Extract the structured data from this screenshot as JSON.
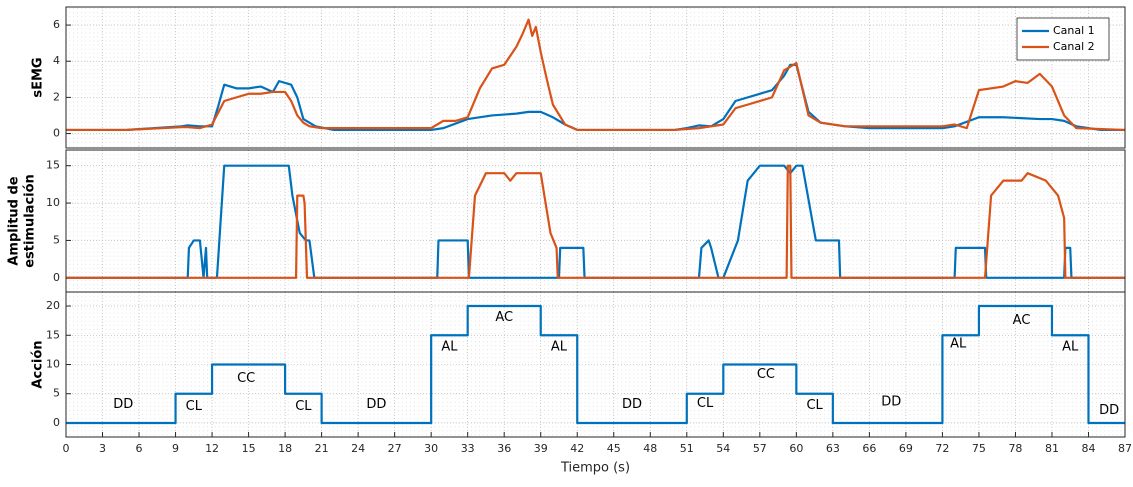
{
  "chart_data": [
    {
      "type": "line",
      "ylabel": "sEMG",
      "xlim": [
        0,
        87
      ],
      "ylim": [
        -0.8,
        7
      ],
      "yticks": [
        0,
        2,
        4,
        6
      ],
      "grid": true,
      "legend": "upper right",
      "series": [
        {
          "name": "Canal 1",
          "color": "#0072BD",
          "x": [
            0,
            5,
            9.5,
            10,
            11,
            12,
            12.5,
            13,
            14,
            15,
            16,
            17,
            17.5,
            18.5,
            19,
            19.5,
            20.5,
            22,
            30,
            31,
            33,
            35,
            37,
            38,
            39,
            40,
            41,
            42,
            50,
            51,
            52,
            53,
            54,
            55,
            57,
            58,
            59,
            59.5,
            60,
            60.5,
            61,
            62,
            64,
            66,
            72,
            73,
            75,
            77,
            80,
            81,
            82,
            83,
            85,
            87
          ],
          "values": [
            0.2,
            0.2,
            0.4,
            0.45,
            0.4,
            0.4,
            1.5,
            2.7,
            2.5,
            2.5,
            2.6,
            2.3,
            2.9,
            2.7,
            2.0,
            0.8,
            0.4,
            0.2,
            0.2,
            0.3,
            0.8,
            1.0,
            1.1,
            1.2,
            1.2,
            0.9,
            0.5,
            0.2,
            0.2,
            0.3,
            0.45,
            0.4,
            0.8,
            1.8,
            2.2,
            2.4,
            3.2,
            3.8,
            3.8,
            2.5,
            1.2,
            0.6,
            0.4,
            0.3,
            0.3,
            0.4,
            0.9,
            0.9,
            0.8,
            0.8,
            0.7,
            0.4,
            0.2,
            0.2
          ]
        },
        {
          "name": "Canal 2",
          "color": "#D95319",
          "x": [
            0,
            5,
            9.5,
            10,
            11,
            12,
            13,
            14,
            15,
            16,
            17,
            18,
            18.5,
            19,
            19.5,
            20,
            21,
            30,
            31,
            32,
            33,
            34,
            35,
            36,
            37,
            37.5,
            38,
            38.3,
            38.6,
            39,
            39.5,
            40,
            41,
            42,
            50,
            52,
            54,
            55,
            56,
            58,
            59,
            60,
            61,
            62,
            64,
            72,
            73,
            74,
            75,
            77,
            78,
            79,
            80,
            81,
            82,
            83,
            87
          ],
          "values": [
            0.2,
            0.2,
            0.35,
            0.35,
            0.3,
            0.5,
            1.8,
            2.0,
            2.2,
            2.2,
            2.3,
            2.3,
            1.8,
            1.0,
            0.6,
            0.4,
            0.3,
            0.3,
            0.7,
            0.7,
            0.9,
            2.5,
            3.6,
            3.8,
            4.8,
            5.5,
            6.3,
            5.4,
            5.9,
            4.5,
            3.0,
            1.6,
            0.5,
            0.2,
            0.2,
            0.3,
            0.5,
            1.4,
            1.6,
            2.0,
            3.5,
            3.9,
            1.0,
            0.6,
            0.4,
            0.4,
            0.5,
            0.3,
            2.4,
            2.6,
            2.9,
            2.8,
            3.3,
            2.6,
            1.0,
            0.3,
            0.2
          ]
        }
      ]
    },
    {
      "type": "line",
      "ylabel": [
        "Amplitud de",
        "estimulación"
      ],
      "xlim": [
        0,
        87
      ],
      "ylim": [
        -1.9,
        17.1
      ],
      "yticks": [
        0,
        5,
        10,
        15
      ],
      "grid": true,
      "series": [
        {
          "color": "#0072BD",
          "x": [
            0,
            10,
            10.1,
            10.5,
            11,
            11.3,
            11.5,
            11.6,
            11.9,
            12,
            12.4,
            12.6,
            13,
            18.3,
            18.6,
            19.2,
            19.7,
            20,
            20.4,
            20.6,
            30.5,
            30.6,
            33,
            33.1,
            40.5,
            40.6,
            42.5,
            42.6,
            52,
            52.2,
            52.8,
            53,
            53.6,
            54,
            55.2,
            56,
            57,
            59,
            59.5,
            60,
            60.5,
            61.6,
            63.5,
            63.6,
            73,
            73.1,
            75.5,
            75.6,
            82,
            82.1,
            82.5,
            82.6,
            87
          ],
          "values": [
            0,
            0,
            4,
            5,
            5,
            0,
            4,
            0,
            0,
            0,
            0,
            5,
            15,
            15,
            11,
            6,
            5,
            5,
            0,
            0,
            0,
            5,
            5,
            0,
            0,
            4,
            4,
            0,
            0,
            4,
            5,
            4,
            0,
            0,
            5,
            13,
            15,
            15,
            14,
            15,
            15,
            5,
            5,
            0,
            0,
            4,
            4,
            0,
            0,
            4,
            4,
            0,
            0
          ]
        },
        {
          "color": "#D95319",
          "x": [
            0,
            18.9,
            19,
            19.5,
            19.6,
            19.8,
            33,
            33.1,
            33.6,
            34.5,
            36,
            36.5,
            37,
            39,
            39.8,
            40.3,
            40.4,
            59.2,
            59.3,
            59.5,
            59.6,
            75.4,
            75.5,
            76,
            77,
            78.5,
            79,
            80.5,
            81.5,
            82,
            82.1,
            87
          ],
          "values": [
            0,
            0,
            11,
            11,
            10,
            0,
            0,
            0,
            11,
            14,
            14,
            13,
            14,
            14,
            6,
            4,
            0,
            0,
            15,
            15,
            0,
            0,
            0,
            11,
            13,
            13,
            14,
            13,
            11,
            8,
            0,
            0
          ]
        }
      ]
    },
    {
      "type": "line",
      "ylabel": "Acción",
      "xlabel": "Tiempo (s)",
      "xlim": [
        0,
        87
      ],
      "ylim": [
        -2.4,
        22.4
      ],
      "xticks": [
        0,
        3,
        6,
        9,
        12,
        15,
        18,
        21,
        24,
        27,
        30,
        33,
        36,
        39,
        42,
        45,
        48,
        51,
        54,
        57,
        60,
        63,
        66,
        69,
        72,
        75,
        78,
        81,
        84,
        87
      ],
      "yticks": [
        0,
        5,
        10,
        15,
        20
      ],
      "grid": true,
      "series": [
        {
          "color": "#0072BD",
          "x": [
            0,
            9,
            9,
            12,
            12,
            18,
            18,
            21,
            21,
            30,
            30,
            33,
            33,
            39,
            39,
            42,
            42,
            51,
            51,
            54,
            54,
            60,
            60,
            63,
            63,
            72,
            72,
            75,
            75,
            81,
            81,
            84,
            84,
            87
          ],
          "values": [
            0,
            0,
            5,
            5,
            10,
            10,
            5,
            5,
            0,
            0,
            15,
            15,
            20,
            20,
            15,
            15,
            0,
            0,
            5,
            5,
            10,
            10,
            5,
            5,
            0,
            0,
            15,
            15,
            20,
            20,
            15,
            15,
            0,
            0
          ]
        }
      ],
      "annotations": [
        {
          "text": "DD",
          "x": 4.7,
          "y": 3.2
        },
        {
          "text": "CL",
          "x": 10.5,
          "y": 2.8
        },
        {
          "text": "CC",
          "x": 14.8,
          "y": 7.6
        },
        {
          "text": "CL",
          "x": 19.5,
          "y": 2.8
        },
        {
          "text": "DD",
          "x": 25.5,
          "y": 3.2
        },
        {
          "text": "AL",
          "x": 31.5,
          "y": 13
        },
        {
          "text": "AC",
          "x": 36,
          "y": 18
        },
        {
          "text": "AL",
          "x": 40.5,
          "y": 13
        },
        {
          "text": "DD",
          "x": 46.5,
          "y": 3.2
        },
        {
          "text": "CL",
          "x": 52.5,
          "y": 3.3
        },
        {
          "text": "CC",
          "x": 57.5,
          "y": 8.3
        },
        {
          "text": "CL",
          "x": 61.5,
          "y": 3
        },
        {
          "text": "DD",
          "x": 67.8,
          "y": 3.6
        },
        {
          "text": "AL",
          "x": 73.3,
          "y": 13.5
        },
        {
          "text": "AC",
          "x": 78.5,
          "y": 17.5
        },
        {
          "text": "AL",
          "x": 82.5,
          "y": 13
        },
        {
          "text": "DD",
          "x": 85.7,
          "y": 2.1
        }
      ]
    }
  ]
}
